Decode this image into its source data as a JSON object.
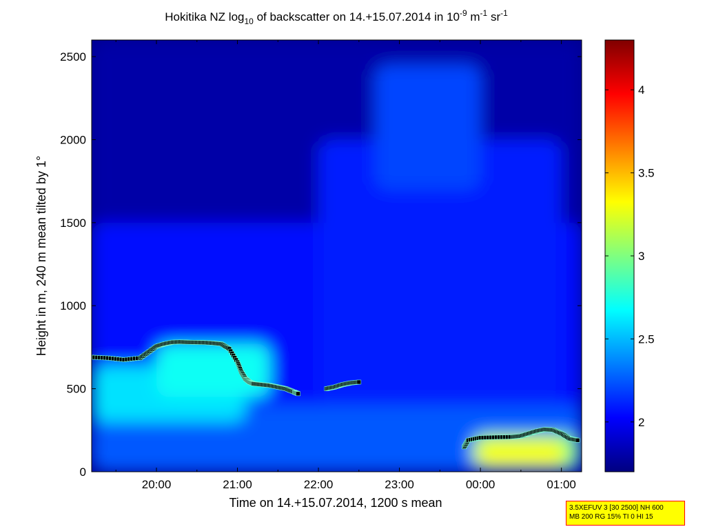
{
  "chart_data": {
    "type": "heatmap",
    "title": {
      "prefix": "Hokitika NZ log",
      "prefix_sub": "10",
      "middle": " of backscatter on 14.+15.07.2014 in 10",
      "exp1": "-9",
      "unit1": " m",
      "exp2": "-1",
      "unit2": " sr",
      "exp3": "-1"
    },
    "xlabel": "Time on 14.+15.07.2014, 1200 s mean",
    "ylabel": "Height in m, 240 m mean tilted by 1°",
    "x_range_hours": [
      19.2,
      25.25
    ],
    "ylim": [
      0,
      2600
    ],
    "x_ticks": [
      {
        "h": 20,
        "label": "20:00"
      },
      {
        "h": 21,
        "label": "21:00"
      },
      {
        "h": 22,
        "label": "22:00"
      },
      {
        "h": 23,
        "label": "23:00"
      },
      {
        "h": 24,
        "label": "00:00"
      },
      {
        "h": 25,
        "label": "01:00"
      }
    ],
    "y_ticks": [
      {
        "v": 0,
        "label": "0"
      },
      {
        "v": 500,
        "label": "500"
      },
      {
        "v": 1000,
        "label": "1000"
      },
      {
        "v": 1500,
        "label": "1500"
      },
      {
        "v": 2000,
        "label": "2000"
      },
      {
        "v": 2500,
        "label": "2500"
      }
    ],
    "colorbar": {
      "range": [
        1.7,
        4.3
      ],
      "ticks": [
        {
          "v": 2,
          "label": "2"
        },
        {
          "v": 2.5,
          "label": "2.5"
        },
        {
          "v": 3,
          "label": "3"
        },
        {
          "v": 3.5,
          "label": "3.5"
        },
        {
          "v": 4,
          "label": "4"
        }
      ]
    },
    "regions": [
      {
        "x": [
          19.2,
          25.25
        ],
        "y": [
          0,
          2600
        ],
        "v": 1.8
      },
      {
        "x": [
          19.2,
          25.25
        ],
        "y": [
          0,
          1500
        ],
        "v": 2.05
      },
      {
        "x": [
          22.0,
          25.0
        ],
        "y": [
          400,
          2000
        ],
        "v": 2.1
      },
      {
        "x": [
          22.7,
          24.0
        ],
        "y": [
          1700,
          2450
        ],
        "v": 2.2
      },
      {
        "x": [
          19.2,
          25.25
        ],
        "y": [
          0,
          400
        ],
        "v": 2.25
      },
      {
        "x": [
          19.2,
          21.1
        ],
        "y": [
          300,
          640
        ],
        "v": 2.6
      },
      {
        "x": [
          20.0,
          21.4
        ],
        "y": [
          450,
          770
        ],
        "v": 2.7
      },
      {
        "x": [
          23.9,
          25.2
        ],
        "y": [
          20,
          230
        ],
        "v": 3.0
      },
      {
        "x": [
          23.95,
          25.05
        ],
        "y": [
          30,
          190
        ],
        "v": 3.3
      }
    ],
    "series": [
      {
        "name": "",
        "x": [
          19.2,
          19.4,
          19.6,
          19.8,
          19.9,
          20.0,
          20.1,
          20.2,
          20.3,
          20.4,
          20.5,
          20.6,
          20.7,
          20.8,
          20.9,
          21.0,
          21.05,
          21.1,
          21.15,
          21.2,
          21.3,
          21.4,
          21.5,
          21.6,
          21.7,
          21.75
        ],
        "y": [
          690,
          685,
          675,
          685,
          720,
          755,
          770,
          780,
          782,
          780,
          779,
          778,
          775,
          770,
          740,
          660,
          600,
          560,
          540,
          530,
          525,
          520,
          510,
          500,
          480,
          470
        ]
      },
      {
        "name": "",
        "x": [
          22.1,
          22.2,
          22.3,
          22.4,
          22.5
        ],
        "y": [
          500,
          510,
          525,
          535,
          540
        ]
      },
      {
        "name": "",
        "x": [
          23.8,
          23.85,
          24.0,
          24.2,
          24.4,
          24.5,
          24.6,
          24.7,
          24.8,
          24.9,
          25.0,
          25.1,
          25.2
        ],
        "y": [
          150,
          190,
          205,
          208,
          210,
          215,
          230,
          245,
          255,
          252,
          230,
          200,
          190
        ]
      }
    ],
    "grid": false
  },
  "info_box": {
    "line1": "3.5XEFUV 3 [30 2500] NH 600",
    "line2": "MB 200 RG 15% TI 0 HI 15"
  }
}
